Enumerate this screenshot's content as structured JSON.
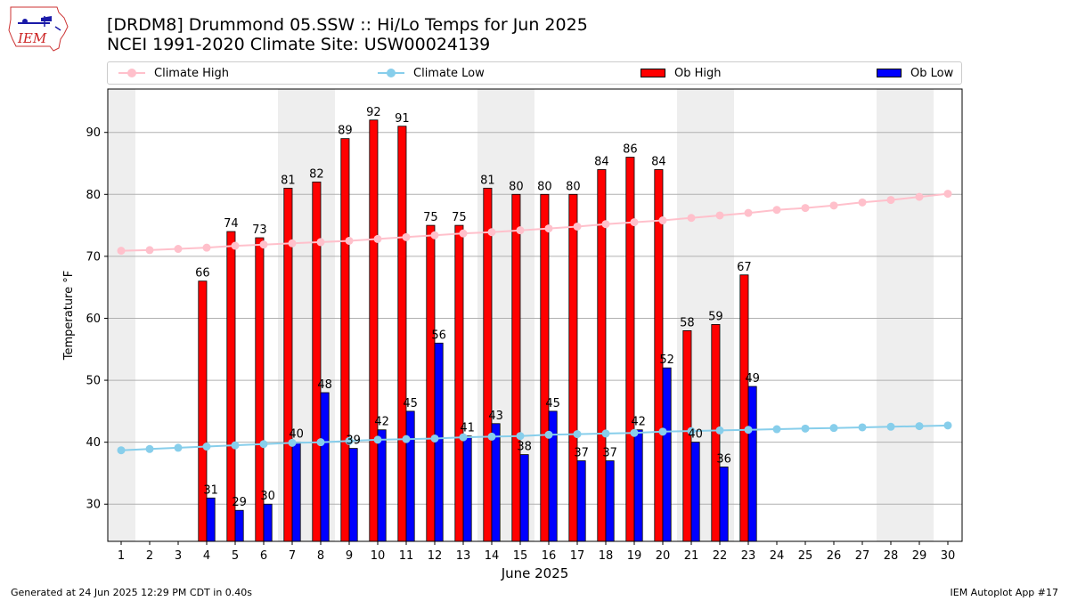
{
  "header": {
    "logo_text": "IEM",
    "title_line1": "[DRDM8] Drummond 05.SSW :: Hi/Lo Temps for Jun 2025",
    "title_line2": "NCEI 1991-2020 Climate Site: USW00024139"
  },
  "legend": {
    "climate_high": "Climate High",
    "climate_low": "Climate Low",
    "ob_high": "Ob High",
    "ob_low": "Ob Low"
  },
  "colors": {
    "climate_high": "#ffc0cb",
    "climate_low": "#87ceeb",
    "ob_high": "#ff0000",
    "ob_low": "#0000ff",
    "weekend_band": "#eeeeee",
    "grid": "#b0b0b0"
  },
  "footer": {
    "left": "Generated at 24 Jun 2025 12:29 PM CDT in 0.40s",
    "right": "IEM Autoplot App #17"
  },
  "chart_data": {
    "type": "bar",
    "xlabel": "June 2025",
    "ylabel": "Temperature °F",
    "ylim": [
      24,
      97
    ],
    "yticks": [
      30,
      40,
      50,
      60,
      70,
      80,
      90
    ],
    "grid": true,
    "categories": [
      "1",
      "2",
      "3",
      "4",
      "5",
      "6",
      "7",
      "8",
      "9",
      "10",
      "11",
      "12",
      "13",
      "14",
      "15",
      "16",
      "17",
      "18",
      "19",
      "20",
      "21",
      "22",
      "23",
      "24",
      "25",
      "26",
      "27",
      "28",
      "29",
      "30"
    ],
    "shaded_days": [
      1,
      7,
      8,
      14,
      15,
      21,
      22,
      28,
      29
    ],
    "series": [
      {
        "name": "Ob High",
        "kind": "bar",
        "values": [
          null,
          null,
          null,
          66,
          74,
          73,
          81,
          82,
          89,
          92,
          91,
          75,
          75,
          81,
          80,
          80,
          80,
          84,
          86,
          84,
          58,
          59,
          67,
          null,
          null,
          null,
          null,
          null,
          null,
          null
        ]
      },
      {
        "name": "Ob Low",
        "kind": "bar",
        "values": [
          null,
          null,
          null,
          31,
          29,
          30,
          40,
          48,
          39,
          42,
          45,
          56,
          41,
          43,
          38,
          45,
          37,
          37,
          42,
          52,
          40,
          36,
          49,
          null,
          null,
          null,
          null,
          null,
          null,
          null
        ]
      },
      {
        "name": "Climate High",
        "kind": "line",
        "values": [
          70.9,
          71.0,
          71.2,
          71.4,
          71.7,
          71.9,
          72.1,
          72.3,
          72.5,
          72.8,
          73.1,
          73.4,
          73.7,
          73.9,
          74.2,
          74.5,
          74.8,
          75.2,
          75.5,
          75.8,
          76.2,
          76.6,
          77.0,
          77.5,
          77.8,
          78.2,
          78.7,
          79.1,
          79.6,
          80.1
        ]
      },
      {
        "name": "Climate Low",
        "kind": "line",
        "values": [
          38.7,
          38.9,
          39.1,
          39.3,
          39.5,
          39.7,
          39.9,
          40.0,
          40.2,
          40.4,
          40.5,
          40.6,
          40.8,
          40.9,
          41.0,
          41.2,
          41.3,
          41.4,
          41.5,
          41.7,
          41.8,
          41.9,
          42.0,
          42.1,
          42.2,
          42.3,
          42.4,
          42.5,
          42.6,
          42.7
        ]
      }
    ]
  }
}
